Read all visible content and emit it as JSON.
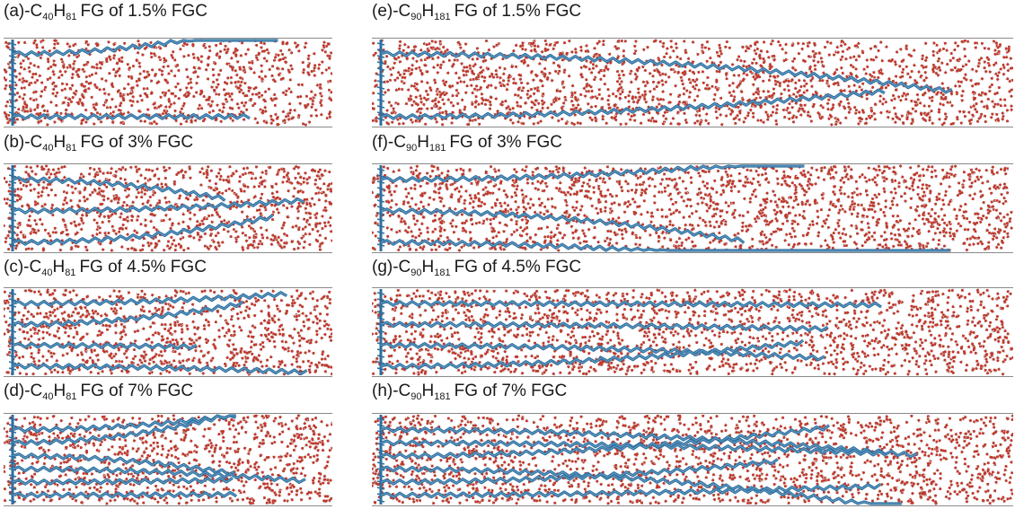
{
  "figure": {
    "panels": [
      {
        "id": "a",
        "prefix": "(a)-C",
        "sub1": "40",
        "mid": "H",
        "sub2": "81",
        "suffix": "FG of 1.5% FGC",
        "chains": 2
      },
      {
        "id": "b",
        "prefix": "(b)-C",
        "sub1": "40",
        "mid": "H",
        "sub2": "81",
        "suffix": "FG of 3% FGC",
        "chains": 3
      },
      {
        "id": "c",
        "prefix": "(c)-C",
        "sub1": "40",
        "mid": "H",
        "sub2": "81",
        "suffix": "FG of 4.5% FGC",
        "chains": 4
      },
      {
        "id": "d",
        "prefix": "(d)-C",
        "sub1": "40",
        "mid": "H",
        "sub2": "81",
        "suffix": "FG of 7% FGC",
        "chains": 6
      },
      {
        "id": "e",
        "prefix": "(e)-C",
        "sub1": "90",
        "mid": "H",
        "sub2": "181",
        "suffix": "FG of 1.5% FGC",
        "chains": 2
      },
      {
        "id": "f",
        "prefix": "(f)-C",
        "sub1": "90",
        "mid": "H",
        "sub2": "181",
        "suffix": "FG of 3% FGC",
        "chains": 3
      },
      {
        "id": "g",
        "prefix": "(g)-C",
        "sub1": "90",
        "mid": "H",
        "sub2": "181",
        "suffix": "FG of 4.5% FGC",
        "chains": 4
      },
      {
        "id": "h",
        "prefix": "(h)-C",
        "sub1": "90",
        "mid": "H",
        "sub2": "181",
        "suffix": "FG of 7% FGC",
        "chains": 6
      }
    ]
  },
  "colors": {
    "chain": "#2e6f9e",
    "oxygen": "#c0392b",
    "hydrogen": "#cfd3d8",
    "border": "#8a8a8a"
  }
}
